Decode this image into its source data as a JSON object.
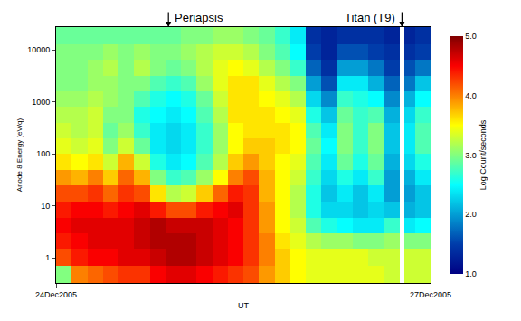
{
  "chart_data": {
    "type": "heatmap",
    "x_label": "UT",
    "y_label": "Anode 8 Energy (eV/q)",
    "colorbar_label": "Log Count/seconds",
    "log": "y",
    "xlim": [
      0,
      72
    ],
    "xticks": [
      {
        "value": 0,
        "label": "24Dec2005"
      },
      {
        "value": 72,
        "label": "27Dec2005"
      }
    ],
    "ylim": [
      0.33,
      27500
    ],
    "yticks": [
      1,
      10,
      100,
      1000,
      10000
    ],
    "zlim": [
      1,
      5
    ],
    "zticks": [
      {
        "value": 1,
        "label": "1.0"
      },
      {
        "value": 2,
        "label": "2.0"
      },
      {
        "value": 3,
        "label": "3.0"
      },
      {
        "value": 4,
        "label": "4.0"
      },
      {
        "value": 5,
        "label": "5.0"
      }
    ],
    "x": [
      0,
      3,
      6,
      9,
      12,
      15,
      18,
      21,
      24,
      27,
      30,
      33,
      36,
      39,
      42,
      45,
      48,
      51,
      54,
      57,
      60,
      63,
      66,
      67,
      69,
      72
    ],
    "y": [
      0.33,
      0.7,
      1.5,
      3,
      6,
      12,
      25,
      50,
      100,
      200,
      400,
      800,
      1600,
      3200,
      6400,
      13000,
      27500
    ],
    "z": [
      [
        3.0,
        4.2,
        4.4,
        4.5,
        4.4,
        4.2,
        3.9,
        3.6,
        3.4,
        3.3,
        3.2,
        3.1,
        3.0,
        3.0,
        3.0,
        2.9
      ],
      [
        4.0,
        4.4,
        4.5,
        4.6,
        4.5,
        4.2,
        3.8,
        3.5,
        3.3,
        3.2,
        3.2,
        3.1,
        3.0,
        3.0,
        3.0,
        2.9
      ],
      [
        4.1,
        4.5,
        4.6,
        4.6,
        4.5,
        4.3,
        4.0,
        3.6,
        3.4,
        3.3,
        3.3,
        3.2,
        3.1,
        3.1,
        3.0,
        2.9
      ],
      [
        4.2,
        4.5,
        4.6,
        4.6,
        4.4,
        4.1,
        3.7,
        3.3,
        3.0,
        2.9,
        3.0,
        3.1,
        3.1,
        3.2,
        3.1,
        2.9
      ],
      [
        4.3,
        4.6,
        4.6,
        4.6,
        4.5,
        4.3,
        4.1,
        3.8,
        3.3,
        3.1,
        3.0,
        3.0,
        3.0,
        3.0,
        3.0,
        2.9
      ],
      [
        4.3,
        4.6,
        4.7,
        4.7,
        4.6,
        4.2,
        3.8,
        3.3,
        2.9,
        2.7,
        2.6,
        2.8,
        3.0,
        3.2,
        3.1,
        2.9
      ],
      [
        4.5,
        4.7,
        4.8,
        4.8,
        4.4,
        3.6,
        3.0,
        2.6,
        2.4,
        2.4,
        2.5,
        2.6,
        2.8,
        3.0,
        3.0,
        2.9
      ],
      [
        4.6,
        4.8,
        4.8,
        4.7,
        4.2,
        3.2,
        2.7,
        2.4,
        2.3,
        2.3,
        2.4,
        2.5,
        2.7,
        2.9,
        3.0,
        2.9
      ],
      [
        4.6,
        4.8,
        4.8,
        4.7,
        4.2,
        3.3,
        2.8,
        2.5,
        2.4,
        2.4,
        2.5,
        2.6,
        2.8,
        3.0,
        3.1,
        3.0
      ],
      [
        4.5,
        4.7,
        4.7,
        4.7,
        4.4,
        3.7,
        3.1,
        2.8,
        2.7,
        2.7,
        2.8,
        2.9,
        3.1,
        3.2,
        3.2,
        3.0
      ],
      [
        4.4,
        4.6,
        4.6,
        4.6,
        4.5,
        4.1,
        3.5,
        3.2,
        3.1,
        3.1,
        3.2,
        3.3,
        3.4,
        3.4,
        3.3,
        3.1
      ],
      [
        4.3,
        4.5,
        4.5,
        4.5,
        4.6,
        4.4,
        4.0,
        3.7,
        3.5,
        3.5,
        3.6,
        3.6,
        3.6,
        3.5,
        3.3,
        3.1
      ],
      [
        4.2,
        4.3,
        4.3,
        4.3,
        4.3,
        4.3,
        4.2,
        3.9,
        3.7,
        3.6,
        3.6,
        3.6,
        3.6,
        3.4,
        3.2,
        3.0
      ],
      [
        3.9,
        4.0,
        4.0,
        3.9,
        3.9,
        3.8,
        3.8,
        3.7,
        3.7,
        3.6,
        3.6,
        3.5,
        3.4,
        3.2,
        3.0,
        2.9
      ],
      [
        3.7,
        3.7,
        3.6,
        3.5,
        3.5,
        3.5,
        3.5,
        3.5,
        3.6,
        3.6,
        3.5,
        3.4,
        3.2,
        3.0,
        2.8,
        2.7
      ],
      [
        3.5,
        3.5,
        3.4,
        3.3,
        3.2,
        3.2,
        3.3,
        3.4,
        3.5,
        3.5,
        3.4,
        3.2,
        3.0,
        2.7,
        2.5,
        2.4
      ],
      [
        3.4,
        3.4,
        3.2,
        2.8,
        2.6,
        2.6,
        2.7,
        2.8,
        2.9,
        2.8,
        2.6,
        2.3,
        2.0,
        1.7,
        1.5,
        1.4
      ],
      [
        3.4,
        3.4,
        3.1,
        2.6,
        2.3,
        2.2,
        2.3,
        2.4,
        2.5,
        2.4,
        2.2,
        1.9,
        1.6,
        1.4,
        1.3,
        1.3
      ],
      [
        3.4,
        3.4,
        3.1,
        2.5,
        2.3,
        2.4,
        2.6,
        2.9,
        3.0,
        3.0,
        2.9,
        2.7,
        2.4,
        2.0,
        1.6,
        1.4
      ],
      [
        3.4,
        3.4,
        3.0,
        2.4,
        2.2,
        2.2,
        2.4,
        2.6,
        2.7,
        2.7,
        2.7,
        2.6,
        2.4,
        2.0,
        1.6,
        1.4
      ],
      [
        3.4,
        3.3,
        3.0,
        2.4,
        2.3,
        2.4,
        2.7,
        2.9,
        3.0,
        3.0,
        2.8,
        2.5,
        2.1,
        1.8,
        1.5,
        1.4
      ],
      [
        3.3,
        3.3,
        3.1,
        2.7,
        2.2,
        2.0,
        2.0,
        2.1,
        2.2,
        2.2,
        2.1,
        1.9,
        1.7,
        1.5,
        1.4,
        1.3
      ],
      [
        null,
        null,
        null,
        null,
        null,
        null,
        null,
        null,
        null,
        null,
        null,
        null,
        null,
        null,
        null,
        null
      ],
      [
        3.3,
        3.3,
        3.0,
        2.4,
        2.1,
        2.0,
        2.1,
        2.3,
        2.4,
        2.4,
        2.3,
        2.1,
        1.8,
        1.6,
        1.4,
        1.3
      ],
      [
        3.3,
        3.3,
        3.0,
        2.5,
        2.2,
        2.2,
        2.4,
        2.6,
        2.8,
        2.8,
        2.7,
        2.5,
        2.2,
        1.8,
        1.5,
        1.4
      ]
    ],
    "annotations": [
      {
        "text": "Periapsis",
        "x": 21.6
      },
      {
        "text": "Titan (T9)",
        "x": 66.5
      }
    ]
  }
}
